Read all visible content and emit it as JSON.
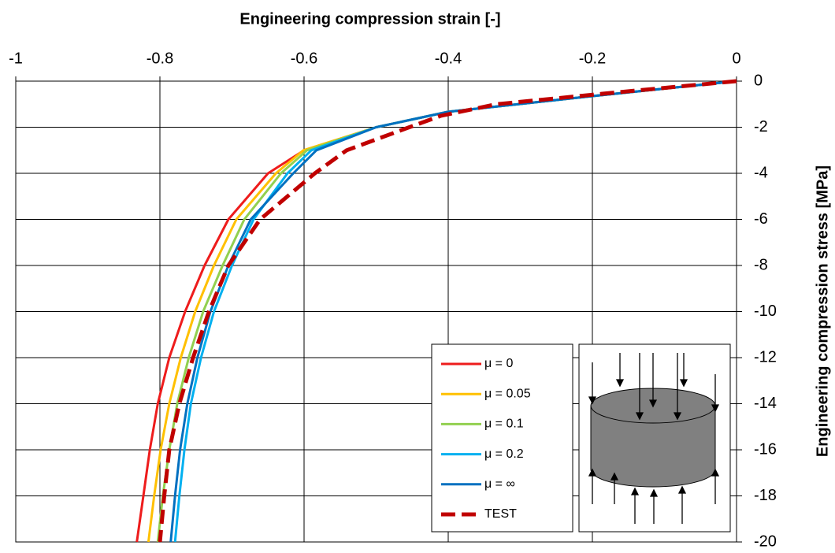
{
  "chart_data": {
    "type": "line",
    "title": "Engineering compression strain [-]",
    "y_title": "Engineering compression stress [MPa]",
    "xlim": [
      -1,
      0
    ],
    "xticks": [
      -1,
      -0.8,
      -0.6,
      -0.4,
      -0.2,
      0
    ],
    "ylim": [
      -20,
      0
    ],
    "yticks": [
      0,
      -2,
      -4,
      -6,
      -8,
      -10,
      -12,
      -14,
      -16,
      -18,
      -20
    ],
    "grid": true,
    "legend": "bottom-right",
    "series": [
      {
        "name": "μ = 0",
        "color": "#ee1c1c",
        "dashed": false,
        "x": [
          0,
          -0.2,
          -0.4,
          -0.5,
          -0.6,
          -0.65,
          -0.705,
          -0.738,
          -0.765,
          -0.787,
          -0.803,
          -0.814,
          -0.823,
          -0.832
        ],
        "values": [
          0,
          -0.65,
          -1.33,
          -2,
          -3,
          -4,
          -6,
          -8,
          -10,
          -12,
          -14,
          -16,
          -18,
          -20
        ]
      },
      {
        "name": "μ = 0.05",
        "color": "#ffc000",
        "dashed": false,
        "x": [
          0,
          -0.2,
          -0.4,
          -0.5,
          -0.601,
          -0.639,
          -0.694,
          -0.725,
          -0.751,
          -0.771,
          -0.787,
          -0.799,
          -0.808,
          -0.816
        ],
        "values": [
          0,
          -0.65,
          -1.33,
          -2,
          -3,
          -4,
          -6,
          -8,
          -10,
          -12,
          -14,
          -16,
          -18,
          -20
        ]
      },
      {
        "name": "μ = 0.1",
        "color": "#92d050",
        "dashed": false,
        "x": [
          0,
          -0.2,
          -0.4,
          -0.5,
          -0.596,
          -0.632,
          -0.683,
          -0.713,
          -0.74,
          -0.76,
          -0.776,
          -0.787,
          -0.796,
          -0.803
        ],
        "values": [
          0,
          -0.65,
          -1.33,
          -2,
          -3,
          -4,
          -6,
          -8,
          -10,
          -12,
          -14,
          -16,
          -18,
          -20
        ]
      },
      {
        "name": "μ = 0.2",
        "color": "#00b0f0",
        "dashed": false,
        "x": [
          0,
          -0.2,
          -0.4,
          -0.5,
          -0.59,
          -0.623,
          -0.67,
          -0.7,
          -0.725,
          -0.743,
          -0.757,
          -0.766,
          -0.773,
          -0.779
        ],
        "values": [
          0,
          -0.65,
          -1.33,
          -2,
          -3,
          -4,
          -6,
          -8,
          -10,
          -12,
          -14,
          -16,
          -18,
          -20
        ]
      },
      {
        "name": "μ = ∞",
        "color": "#0070c0",
        "dashed": false,
        "x": [
          0,
          -0.2,
          -0.4,
          -0.5,
          -0.583,
          -0.615,
          -0.674,
          -0.705,
          -0.73,
          -0.748,
          -0.762,
          -0.772,
          -0.779,
          -0.785
        ],
        "values": [
          0,
          -0.65,
          -1.33,
          -2,
          -3,
          -4,
          -6,
          -8,
          -10,
          -12,
          -14,
          -16,
          -18,
          -20
        ]
      },
      {
        "name": "TEST",
        "color": "#c00000",
        "dashed": true,
        "x": [
          0,
          -0.17,
          -0.333,
          -0.41,
          -0.454,
          -0.541,
          -0.585,
          -0.661,
          -0.705,
          -0.732,
          -0.754,
          -0.773,
          -0.787,
          -0.794,
          -0.8
        ],
        "values": [
          0,
          -0.5,
          -1,
          -1.5,
          -2,
          -3,
          -4,
          -6,
          -8,
          -10,
          -12,
          -14,
          -16,
          -18,
          -20
        ]
      }
    ]
  }
}
